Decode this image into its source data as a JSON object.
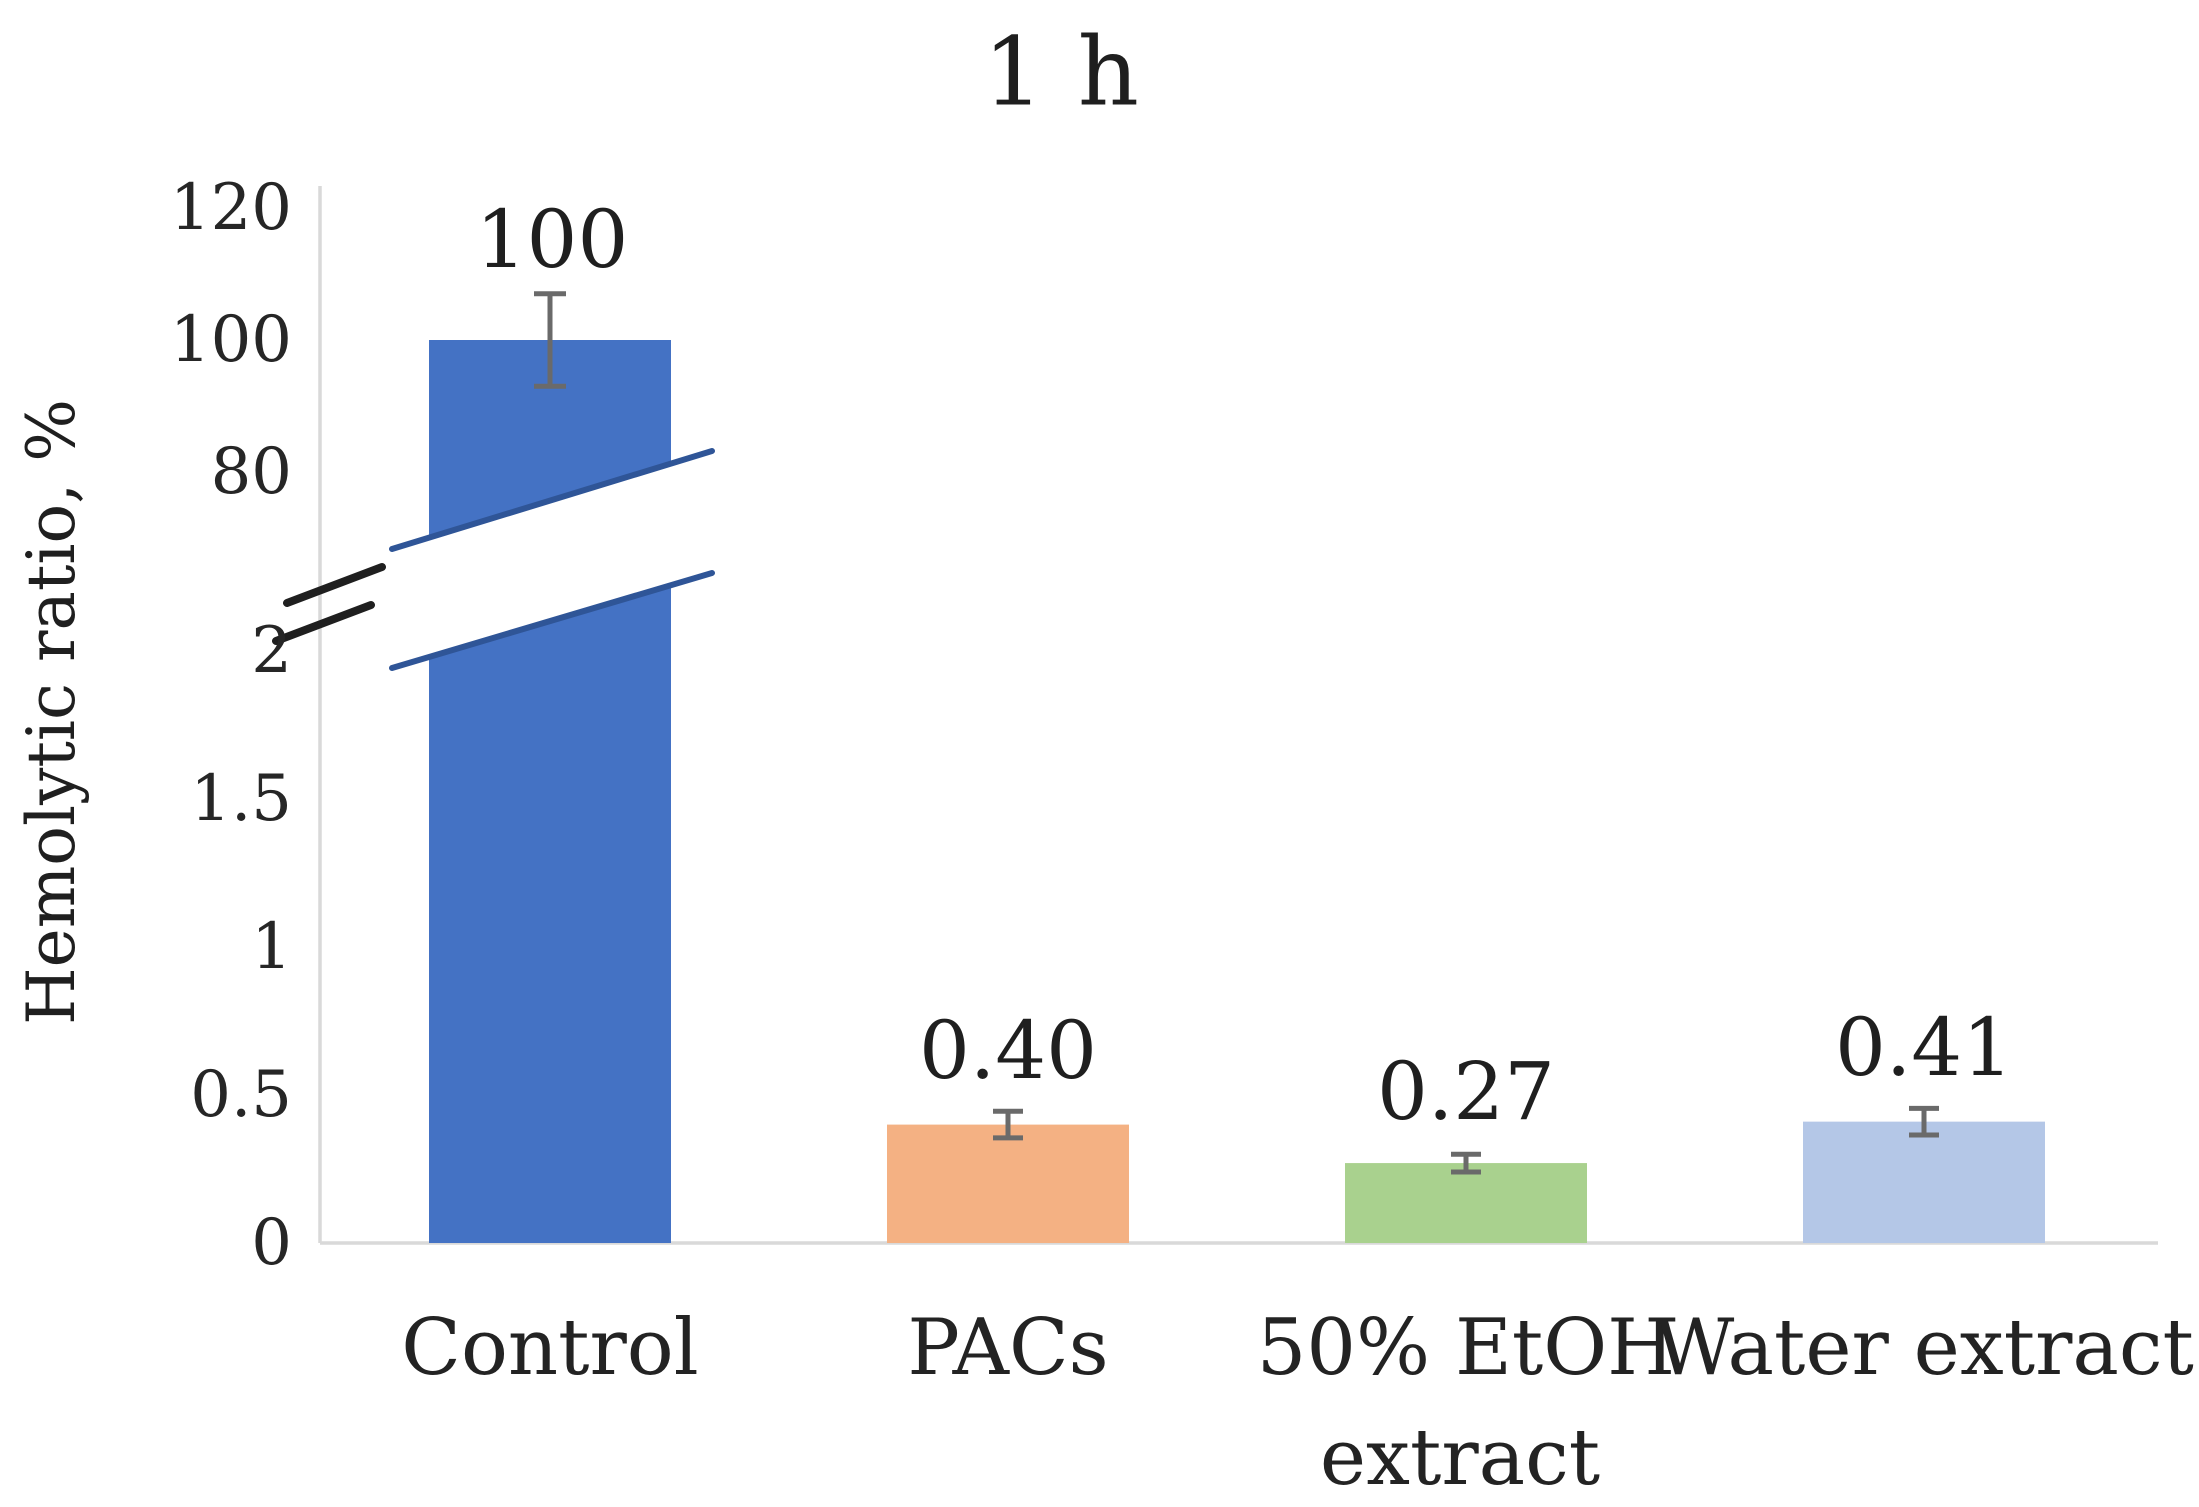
{
  "chart_data": {
    "type": "bar",
    "title": "1 h",
    "xlabel": "",
    "ylabel": "Hemolytic ratio, %",
    "broken_axis": true,
    "axis_break": {
      "lower_section_min": 0,
      "lower_section_max": 2,
      "upper_section_min": 80,
      "upper_section_max": 120
    },
    "categories": [
      "Control",
      "PACs",
      "50% EtOH extract",
      "Water extract"
    ],
    "category_lines": [
      [
        "Control"
      ],
      [
        "PACs"
      ],
      [
        "50% EtOH",
        "extract"
      ],
      [
        "Water extract"
      ]
    ],
    "values": [
      100,
      0.4,
      0.27,
      0.41
    ],
    "value_labels": [
      "100",
      "0.40",
      "0.27",
      "0.41"
    ],
    "errors": [
      7,
      0.045,
      0.03,
      0.045
    ],
    "bar_colors": [
      "#4472C4",
      "#F4B183",
      "#A9D18E",
      "#B4C7E7"
    ],
    "yticks_upper": [
      120,
      100,
      80
    ],
    "ytick_labels_upper": [
      "120",
      "100",
      "80"
    ],
    "yticks_lower": [
      2,
      1.5,
      1,
      0.5,
      0
    ],
    "ytick_labels_lower": [
      "2",
      "1.5",
      "1",
      "0.5",
      "0"
    ],
    "grid": false,
    "legend": null,
    "colors": {
      "axis_line": "#d9d9d9",
      "error_bar": "#6a6a6a",
      "break_cut_edge": "#2F5597",
      "break_slash": "#1f1f1f",
      "text": "#1f1f1f"
    }
  }
}
